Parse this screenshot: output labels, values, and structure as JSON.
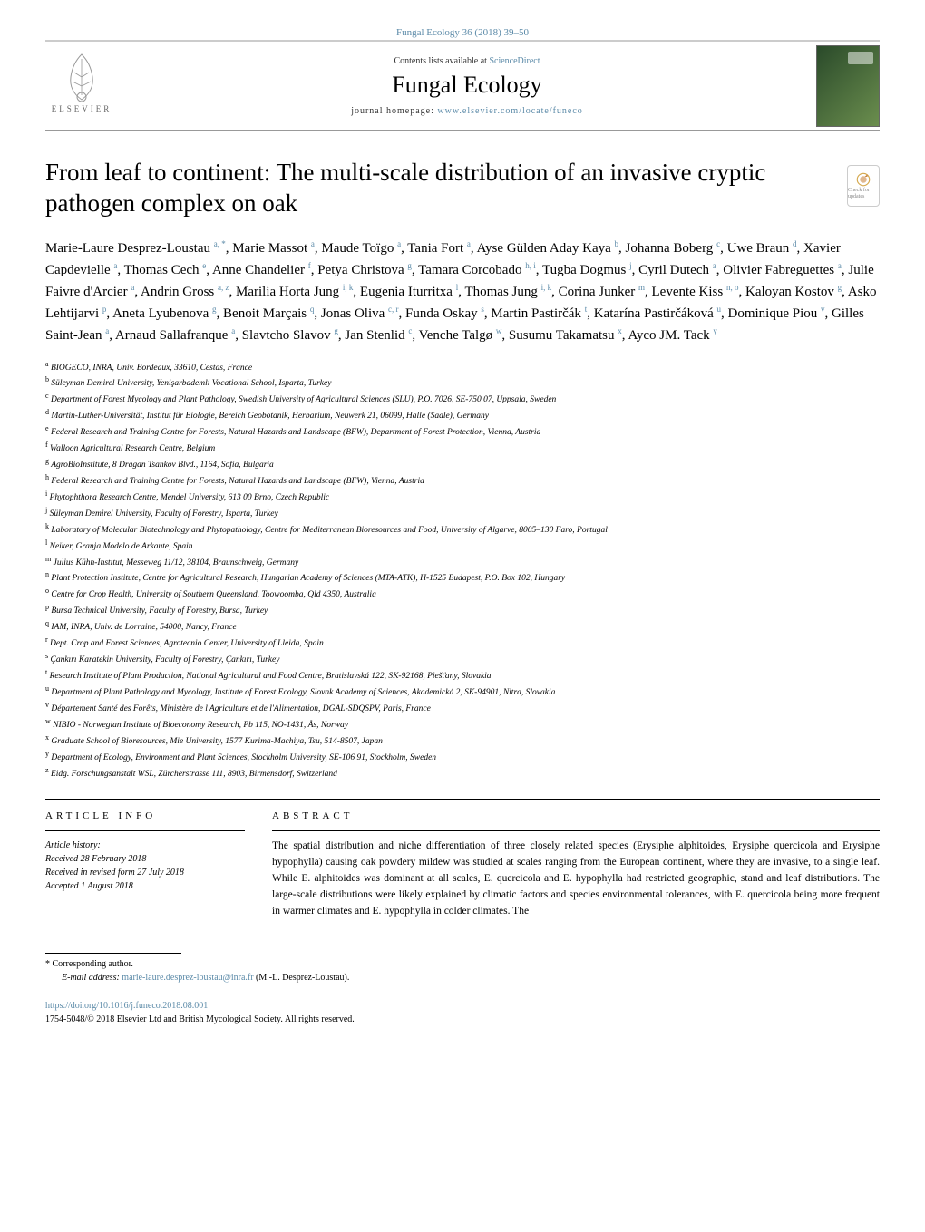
{
  "journal_ref": "Fungal Ecology 36 (2018) 39–50",
  "header": {
    "contents_prefix": "Contents lists available at ",
    "contents_link": "ScienceDirect",
    "journal_title": "Fungal Ecology",
    "homepage_prefix": "journal homepage: ",
    "homepage_link": "www.elsevier.com/locate/funeco",
    "elsevier_label": "ELSEVIER"
  },
  "title": "From leaf to continent: The multi-scale distribution of an invasive cryptic pathogen complex on oak",
  "check_badge": "Check for updates",
  "authors_html": "Marie-Laure Desprez-Loustau <sup>a, *</sup>, Marie Massot <sup>a</sup>, Maude Toïgo <sup>a</sup>, Tania Fort <sup>a</sup>, Ayse Gülden Aday Kaya <sup>b</sup>, Johanna Boberg <sup>c</sup>, Uwe Braun <sup>d</sup>, Xavier Capdevielle <sup>a</sup>, Thomas Cech <sup>e</sup>, Anne Chandelier <sup>f</sup>, Petya Christova <sup>g</sup>, Tamara Corcobado <sup>h, i</sup>, Tugba Dogmus <sup>j</sup>, Cyril Dutech <sup>a</sup>, Olivier Fabreguettes <sup>a</sup>, Julie Faivre d'Arcier <sup>a</sup>, Andrin Gross <sup>a, z</sup>, Marilia Horta Jung <sup>i, k</sup>, Eugenia Iturritxa <sup>l</sup>, Thomas Jung <sup>i, k</sup>, Corina Junker <sup>m</sup>, Levente Kiss <sup>n, o</sup>, Kaloyan Kostov <sup>g</sup>, Asko Lehtijarvi <sup>p</sup>, Aneta Lyubenova <sup>g</sup>, Benoit Marçais <sup>q</sup>, Jonas Oliva <sup>c, r</sup>, Funda Oskay <sup>s</sup>, Martin Pastirčák <sup>t</sup>, Katarína Pastirčáková <sup>u</sup>, Dominique Piou <sup>v</sup>, Gilles Saint-Jean <sup>a</sup>, Arnaud Sallafranque <sup>a</sup>, Slavtcho Slavov <sup>g</sup>, Jan Stenlid <sup>c</sup>, Venche Talgø <sup>w</sup>, Susumu Takamatsu <sup>x</sup>, Ayco JM. Tack <sup>y</sup>",
  "affiliations": [
    {
      "key": "a",
      "text": "BIOGECO, INRA, Univ. Bordeaux, 33610, Cestas, France"
    },
    {
      "key": "b",
      "text": "Süleyman Demirel University, Yenişarbademli Vocational School, Isparta, Turkey"
    },
    {
      "key": "c",
      "text": "Department of Forest Mycology and Plant Pathology, Swedish University of Agricultural Sciences (SLU), P.O. 7026, SE-750 07, Uppsala, Sweden"
    },
    {
      "key": "d",
      "text": "Martin-Luther-Universität, Institut für Biologie, Bereich Geobotanik, Herbarium, Neuwerk 21, 06099, Halle (Saale), Germany"
    },
    {
      "key": "e",
      "text": "Federal Research and Training Centre for Forests, Natural Hazards and Landscape (BFW), Department of Forest Protection, Vienna, Austria"
    },
    {
      "key": "f",
      "text": "Walloon Agricultural Research Centre, Belgium"
    },
    {
      "key": "g",
      "text": "AgroBioInstitute, 8 Dragan Tsankov Blvd., 1164, Sofia, Bulgaria"
    },
    {
      "key": "h",
      "text": "Federal Research and Training Centre for Forests, Natural Hazards and Landscape (BFW), Vienna, Austria"
    },
    {
      "key": "i",
      "text": "Phytophthora Research Centre, Mendel University, 613 00 Brno, Czech Republic"
    },
    {
      "key": "j",
      "text": "Süleyman Demirel University, Faculty of Forestry, Isparta, Turkey"
    },
    {
      "key": "k",
      "text": "Laboratory of Molecular Biotechnology and Phytopathology, Centre for Mediterranean Bioresources and Food, University of Algarve, 8005–130 Faro, Portugal"
    },
    {
      "key": "l",
      "text": "Neiker, Granja Modelo de Arkaute, Spain"
    },
    {
      "key": "m",
      "text": "Julius Kühn-Institut, Messeweg 11/12, 38104, Braunschweig, Germany"
    },
    {
      "key": "n",
      "text": "Plant Protection Institute, Centre for Agricultural Research, Hungarian Academy of Sciences (MTA-ATK), H-1525 Budapest, P.O. Box 102, Hungary"
    },
    {
      "key": "o",
      "text": "Centre for Crop Health, University of Southern Queensland, Toowoomba, Qld 4350, Australia"
    },
    {
      "key": "p",
      "text": "Bursa Technical University, Faculty of Forestry, Bursa, Turkey"
    },
    {
      "key": "q",
      "text": "IAM, INRA, Univ. de Lorraine, 54000, Nancy, France"
    },
    {
      "key": "r",
      "text": "Dept. Crop and Forest Sciences, Agrotecnio Center, University of Lleida, Spain"
    },
    {
      "key": "s",
      "text": "Çankırı Karatekin University, Faculty of Forestry, Çankırı, Turkey"
    },
    {
      "key": "t",
      "text": "Research Institute of Plant Production, National Agricultural and Food Centre, Bratislavská 122, SK-92168, Piešťany, Slovakia"
    },
    {
      "key": "u",
      "text": "Department of Plant Pathology and Mycology, Institute of Forest Ecology, Slovak Academy of Sciences, Akademická 2, SK-94901, Nitra, Slovakia"
    },
    {
      "key": "v",
      "text": "Département Santé des Forêts, Ministère de l'Agriculture et de l'Alimentation, DGAL-SDQSPV, Paris, France"
    },
    {
      "key": "w",
      "text": "NIBIO - Norwegian Institute of Bioeconomy Research, Pb 115, NO-1431, Ås, Norway"
    },
    {
      "key": "x",
      "text": "Graduate School of Bioresources, Mie University, 1577 Kurima-Machiya, Tsu, 514-8507, Japan"
    },
    {
      "key": "y",
      "text": "Department of Ecology, Environment and Plant Sciences, Stockholm University, SE-106 91, Stockholm, Sweden"
    },
    {
      "key": "z",
      "text": "Eidg. Forschungsanstalt WSL, Zürcherstrasse 111, 8903, Birmensdorf, Switzerland"
    }
  ],
  "sections": {
    "info_head": "ARTICLE INFO",
    "abstract_head": "ABSTRACT"
  },
  "history": {
    "label": "Article history:",
    "received": "Received 28 February 2018",
    "revised": "Received in revised form 27 July 2018",
    "accepted": "Accepted 1 August 2018"
  },
  "abstract": "The spatial distribution and niche differentiation of three closely related species (Erysiphe alphitoides, Erysiphe quercicola and Erysiphe hypophylla) causing oak powdery mildew was studied at scales ranging from the European continent, where they are invasive, to a single leaf. While E. alphitoides was dominant at all scales, E. quercicola and E. hypophylla had restricted geographic, stand and leaf distributions. The large-scale distributions were likely explained by climatic factors and species environmental tolerances, with E. quercicola being more frequent in warmer climates and E. hypophylla in colder climates. The",
  "corresponding": {
    "star": "* Corresponding author.",
    "email_label": "E-mail address: ",
    "email": "marie-laure.desprez-loustau@inra.fr",
    "email_suffix": " (M.-L. Desprez-Loustau)."
  },
  "footer": {
    "doi": "https://doi.org/10.1016/j.funeco.2018.08.001",
    "copyright": "1754-5048/© 2018 Elsevier Ltd and British Mycological Society. All rights reserved."
  },
  "colors": {
    "link": "#5b8aa8",
    "text": "#000000",
    "rule": "#000000"
  }
}
